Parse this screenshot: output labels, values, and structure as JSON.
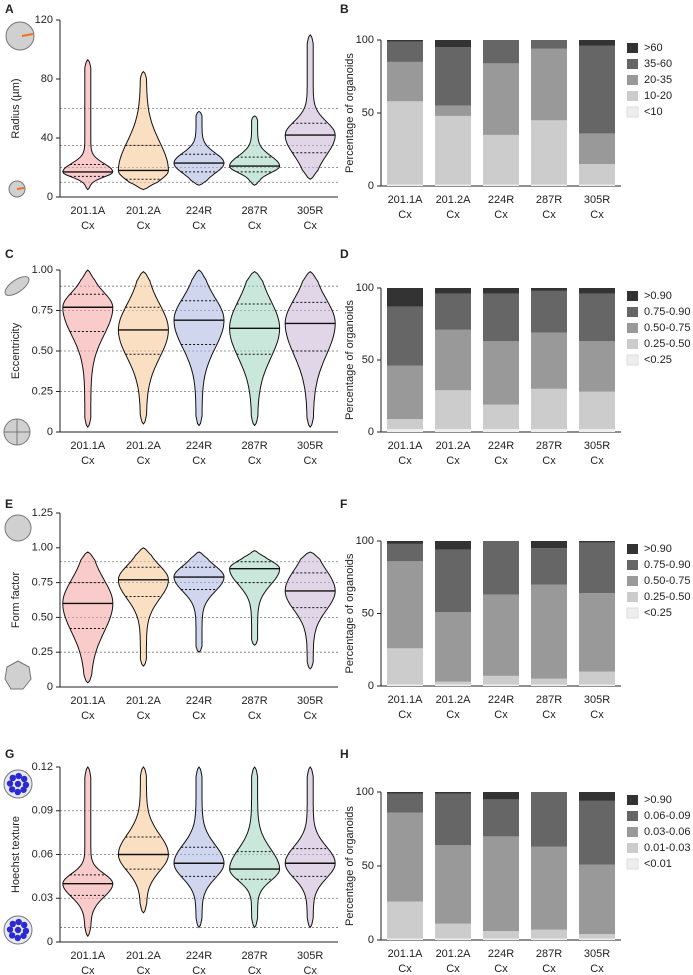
{
  "chart_data": [
    {
      "type": "violin",
      "panel": "A",
      "ylabel": "Radius (µm)",
      "categories": [
        "201.1A Cx",
        "201.2A Cx",
        "224R Cx",
        "287R Cx",
        "305R Cx"
      ],
      "colors": [
        "#f4a3a0",
        "#f5c48f",
        "#a9b4e0",
        "#9fd3c0",
        "#c9b3d6"
      ],
      "median": [
        17,
        18,
        23,
        21,
        42
      ],
      "q1": [
        14,
        12,
        17,
        17,
        30
      ],
      "q3": [
        22,
        35,
        29,
        27,
        50
      ],
      "min": [
        5,
        5,
        8,
        8,
        12
      ],
      "max": [
        93,
        85,
        58,
        55,
        110
      ],
      "ylim": [
        0,
        120
      ],
      "yticks": [
        0,
        40,
        80,
        120
      ],
      "reference_lines": [
        10,
        20,
        35,
        60
      ]
    },
    {
      "type": "stacked_bar",
      "panel": "B",
      "ylabel": "Percentage of organoids",
      "categories": [
        "201.1A Cx",
        "201.2A Cx",
        "224R Cx",
        "287R Cx",
        "305R Cx"
      ],
      "series": [
        {
          "name": "<10",
          "color": "#eeeeee",
          "values": [
            1,
            1,
            1,
            1,
            1
          ]
        },
        {
          "name": "10-20",
          "color": "#cccccc",
          "values": [
            57,
            47,
            34,
            44,
            14
          ]
        },
        {
          "name": "20-35",
          "color": "#999999",
          "values": [
            27,
            7,
            49,
            49,
            21
          ]
        },
        {
          "name": "35-60",
          "color": "#666666",
          "values": [
            14,
            40,
            16,
            6,
            60
          ]
        },
        {
          "name": ">60",
          "color": "#333333",
          "values": [
            1,
            5,
            0,
            0,
            4
          ]
        }
      ],
      "ylim": [
        0,
        100
      ],
      "yticks": [
        0,
        50,
        100
      ]
    },
    {
      "type": "violin",
      "panel": "C",
      "ylabel": "Eccentricity",
      "categories": [
        "201.1A Cx",
        "201.2A Cx",
        "224R Cx",
        "287R Cx",
        "305R Cx"
      ],
      "colors": [
        "#f4a3a0",
        "#f5c48f",
        "#a9b4e0",
        "#9fd3c0",
        "#c9b3d6"
      ],
      "median": [
        0.77,
        0.63,
        0.69,
        0.64,
        0.67
      ],
      "q1": [
        0.62,
        0.48,
        0.54,
        0.48,
        0.5
      ],
      "q3": [
        0.85,
        0.77,
        0.81,
        0.79,
        0.8
      ],
      "min": [
        0.03,
        0.05,
        0.04,
        0.04,
        0.03
      ],
      "max": [
        1.0,
        0.99,
        1.0,
        0.99,
        0.99
      ],
      "ylim": [
        0,
        1.0
      ],
      "yticks": [
        0,
        0.25,
        {
          "value": 0.5,
          "label": "0.50"
        },
        0.75,
        {
          "value": 1.0,
          "label": "1.00"
        }
      ],
      "reference_lines": [
        0.25,
        0.5,
        0.75,
        0.9
      ]
    },
    {
      "type": "stacked_bar",
      "panel": "D",
      "ylabel": "Percentage of organoids",
      "categories": [
        "201.1A Cx",
        "201.2A Cx",
        "224R Cx",
        "287R Cx",
        "305R Cx"
      ],
      "series": [
        {
          "name": "<0.25",
          "color": "#eeeeee",
          "values": [
            2,
            2,
            2,
            2,
            2
          ]
        },
        {
          "name": "0.25-0.50",
          "color": "#cccccc",
          "values": [
            7,
            27,
            17,
            28,
            26
          ]
        },
        {
          "name": "0.50-0.75",
          "color": "#999999",
          "values": [
            37,
            42,
            44,
            39,
            35
          ]
        },
        {
          "name": "0.75-0.90",
          "color": "#666666",
          "values": [
            41,
            25,
            33,
            29,
            33
          ]
        },
        {
          "name": ">0.90",
          "color": "#333333",
          "values": [
            13,
            4,
            4,
            2,
            4
          ]
        }
      ],
      "ylim": [
        0,
        100
      ],
      "yticks": [
        0,
        50,
        100
      ]
    },
    {
      "type": "violin",
      "panel": "E",
      "ylabel": "Form factor",
      "categories": [
        "201.1A Cx",
        "201.2A Cx",
        "224R Cx",
        "287R Cx",
        "305R Cx"
      ],
      "colors": [
        "#f4a3a0",
        "#f5c48f",
        "#a9b4e0",
        "#9fd3c0",
        "#c9b3d6"
      ],
      "median": [
        0.6,
        0.77,
        0.79,
        0.85,
        0.69
      ],
      "q1": [
        0.42,
        0.65,
        0.7,
        0.75,
        0.57
      ],
      "q3": [
        0.75,
        0.86,
        0.86,
        0.9,
        0.82
      ],
      "min": [
        0.03,
        0.15,
        0.25,
        0.3,
        0.13
      ],
      "max": [
        0.97,
        1.0,
        0.97,
        0.98,
        0.97
      ],
      "ylim": [
        0,
        1.25
      ],
      "yticks": [
        0,
        0.25,
        {
          "value": 0.5,
          "label": "0.50"
        },
        0.75,
        {
          "value": 1.0,
          "label": "1.00"
        },
        1.25
      ],
      "reference_lines": [
        0.25,
        0.5,
        0.75,
        0.9
      ]
    },
    {
      "type": "stacked_bar",
      "panel": "F",
      "ylabel": "Percentage of organoids",
      "categories": [
        "201.1A Cx",
        "201.2A Cx",
        "224R Cx",
        "287R Cx",
        "305R Cx"
      ],
      "series": [
        {
          "name": "<0.25",
          "color": "#eeeeee",
          "values": [
            1,
            1,
            1,
            1,
            1
          ]
        },
        {
          "name": "0.25-0.50",
          "color": "#cccccc",
          "values": [
            25,
            2,
            6,
            4,
            9
          ]
        },
        {
          "name": "0.50-0.75",
          "color": "#999999",
          "values": [
            60,
            48,
            56,
            65,
            54
          ]
        },
        {
          "name": "0.75-0.90",
          "color": "#666666",
          "values": [
            12,
            43,
            37,
            25,
            35
          ]
        },
        {
          "name": ">0.90",
          "color": "#333333",
          "values": [
            2,
            6,
            0,
            5,
            1
          ]
        }
      ],
      "ylim": [
        0,
        100
      ],
      "yticks": [
        0,
        50,
        100
      ]
    },
    {
      "type": "violin",
      "panel": "G",
      "ylabel": "Hoechst texture",
      "categories": [
        "201.1A Cx",
        "201.2A Cx",
        "224R Cx",
        "287R Cx",
        "305R Cx"
      ],
      "colors": [
        "#f4a3a0",
        "#f5c48f",
        "#a9b4e0",
        "#9fd3c0",
        "#c9b3d6"
      ],
      "median": [
        0.04,
        0.06,
        0.054,
        0.05,
        0.054
      ],
      "q1": [
        0.032,
        0.05,
        0.045,
        0.043,
        0.045
      ],
      "q3": [
        0.046,
        0.072,
        0.065,
        0.062,
        0.064
      ],
      "min": [
        0.004,
        0.02,
        0.01,
        0.01,
        0.01
      ],
      "max": [
        0.12,
        0.12,
        0.12,
        0.12,
        0.12
      ],
      "ylim": [
        0,
        0.12
      ],
      "yticks": [
        0,
        0.03,
        0.06,
        0.09,
        0.12
      ],
      "reference_lines": [
        0.01,
        0.03,
        0.06,
        0.09
      ]
    },
    {
      "type": "stacked_bar",
      "panel": "H",
      "ylabel": "Percentage of organoids",
      "categories": [
        "201.1A Cx",
        "201.2A Cx",
        "224R Cx",
        "287R Cx",
        "305R Cx"
      ],
      "series": [
        {
          "name": "<0.01",
          "color": "#eeeeee",
          "values": [
            1,
            1,
            1,
            1,
            1
          ]
        },
        {
          "name": "0.01-0.03",
          "color": "#cccccc",
          "values": [
            25,
            10,
            5,
            6,
            3
          ]
        },
        {
          "name": "0.03-0.06",
          "color": "#999999",
          "values": [
            60,
            53,
            64,
            56,
            47
          ]
        },
        {
          "name": "0.06-0.09",
          "color": "#666666",
          "values": [
            13,
            35,
            25,
            37,
            43
          ]
        },
        {
          "name": ">0.90",
          "color": "#333333",
          "values": [
            1,
            1,
            5,
            0,
            6
          ]
        }
      ],
      "ylim": [
        0,
        100
      ],
      "yticks": [
        0,
        50,
        100
      ]
    }
  ]
}
